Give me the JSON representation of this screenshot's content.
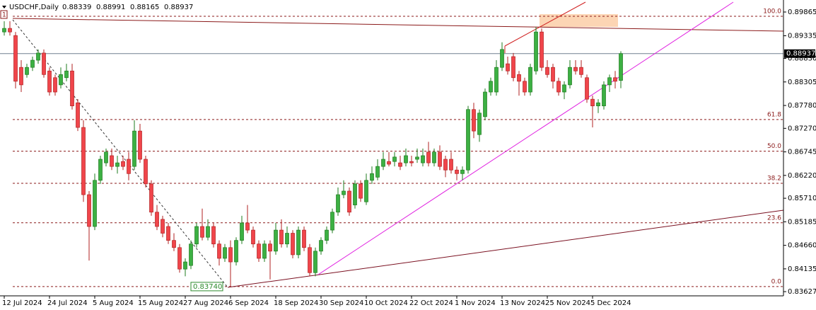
{
  "chart_data": {
    "type": "candlestick",
    "symbol": "USDCHF,Daily",
    "object_label": "1",
    "categories": [
      "12 Jul 2024",
      null,
      null,
      null,
      null,
      null,
      null,
      null,
      "24 Jul 2024",
      null,
      null,
      null,
      null,
      null,
      null,
      null,
      "5 Aug 2024",
      null,
      null,
      null,
      null,
      null,
      null,
      null,
      "15 Aug 2024",
      null,
      null,
      null,
      null,
      null,
      null,
      null,
      "27 Aug 2024",
      null,
      null,
      null,
      null,
      null,
      null,
      null,
      "6 Sep 2024",
      null,
      null,
      null,
      null,
      null,
      null,
      null,
      "18 Sep 2024",
      null,
      null,
      null,
      null,
      null,
      null,
      null,
      "30 Sep 2024",
      null,
      null,
      null,
      null,
      null,
      null,
      null,
      "10 Oct 2024",
      null,
      null,
      null,
      null,
      null,
      null,
      null,
      "22 Oct 2024",
      null,
      null,
      null,
      null,
      null,
      null,
      null,
      "1 Nov 2024",
      null,
      null,
      null,
      null,
      null,
      null,
      null,
      "13 Nov 2024",
      null,
      null,
      null,
      null,
      null,
      null,
      null,
      "25 Nov 2024",
      null,
      null,
      null,
      null,
      null,
      null,
      null,
      "5 Dec 2024",
      null,
      null,
      null,
      null,
      null
    ],
    "open": [
      0.8942,
      0.895,
      0.8934,
      0.8863,
      0.8847,
      0.8863,
      0.8879,
      0.8895,
      0.8855,
      0.884,
      0.8824,
      0.884,
      0.8855,
      0.8784,
      0.8729,
      0.8579,
      0.8508,
      0.8611,
      0.865,
      0.8666,
      0.8642,
      0.8653,
      0.8658,
      0.8642,
      0.8721,
      0.8658,
      0.8603,
      0.854,
      0.8524,
      0.8508,
      0.8477,
      0.8461,
      0.8413,
      0.8421,
      0.8469,
      0.8508,
      0.8484,
      0.8508,
      0.8469,
      0.8437,
      0.8461,
      0.8429,
      0.8477,
      0.8516,
      0.85,
      0.8469,
      0.8437,
      0.8469,
      0.8453,
      0.85,
      0.8469,
      0.8493,
      0.8445,
      0.85,
      0.8461,
      0.8405,
      0.8453,
      0.8477,
      0.85,
      0.854,
      0.8579,
      0.8587,
      0.8556,
      0.8603,
      0.8563,
      0.8611,
      0.8618,
      0.8642,
      0.8653,
      0.8653,
      0.865,
      0.865,
      0.8653,
      0.8658,
      0.865,
      0.8674,
      0.865,
      0.8674,
      0.8658,
      0.8658,
      0.8634,
      0.8626,
      0.8634,
      0.8769,
      0.8713,
      0.8753,
      0.8808,
      0.8808,
      0.8863,
      0.8871,
      0.8887,
      0.8847,
      0.8832,
      0.8808,
      0.8855,
      0.8942,
      0.8863,
      0.8863,
      0.8832,
      0.8808,
      0.8824,
      0.8863,
      0.8863,
      0.884,
      0.8792,
      0.8777,
      0.8777,
      0.8824,
      0.884,
      0.88339
    ],
    "high": [
      0.8966,
      0.8966,
      0.8942,
      0.8879,
      0.8871,
      0.8887,
      0.8903,
      0.8903,
      0.8863,
      0.8847,
      0.8863,
      0.8871,
      0.8871,
      0.8792,
      0.8745,
      0.8587,
      0.8626,
      0.8666,
      0.8682,
      0.8682,
      0.8666,
      0.8666,
      0.8674,
      0.8745,
      0.8737,
      0.8666,
      0.8611,
      0.8556,
      0.8532,
      0.8516,
      0.8493,
      0.8469,
      0.8437,
      0.8477,
      0.8516,
      0.8548,
      0.8524,
      0.8516,
      0.8477,
      0.8469,
      0.8477,
      0.8484,
      0.8532,
      0.8556,
      0.8508,
      0.8477,
      0.8477,
      0.8477,
      0.8516,
      0.8524,
      0.8508,
      0.85,
      0.8508,
      0.8508,
      0.8469,
      0.8461,
      0.8484,
      0.8508,
      0.8548,
      0.8595,
      0.8611,
      0.8595,
      0.8611,
      0.8611,
      0.8626,
      0.8642,
      0.8658,
      0.8674,
      0.8674,
      0.8674,
      0.8666,
      0.8682,
      0.8666,
      0.8682,
      0.8682,
      0.8697,
      0.8682,
      0.8689,
      0.8666,
      0.8674,
      0.8642,
      0.8642,
      0.8777,
      0.8784,
      0.8769,
      0.8816,
      0.884,
      0.8879,
      0.8919,
      0.8887,
      0.8895,
      0.8855,
      0.884,
      0.8871,
      0.8953,
      0.895,
      0.8879,
      0.8871,
      0.884,
      0.8832,
      0.8879,
      0.8879,
      0.8879,
      0.8847,
      0.88,
      0.8792,
      0.8832,
      0.8847,
      0.8855,
      0.88991
    ],
    "low": [
      0.8934,
      0.8934,
      0.8816,
      0.8808,
      0.884,
      0.8855,
      0.8871,
      0.884,
      0.88,
      0.88,
      0.8816,
      0.8832,
      0.8769,
      0.8721,
      0.8563,
      0.8432,
      0.85,
      0.8603,
      0.8642,
      0.8634,
      0.8626,
      0.8634,
      0.8611,
      0.8634,
      0.865,
      0.8595,
      0.8532,
      0.85,
      0.8484,
      0.8469,
      0.8453,
      0.8405,
      0.8397,
      0.8413,
      0.8461,
      0.8477,
      0.8477,
      0.8461,
      0.8421,
      0.8429,
      0.8374,
      0.8421,
      0.8469,
      0.8493,
      0.8461,
      0.8429,
      0.8429,
      0.839,
      0.8445,
      0.8461,
      0.8461,
      0.8437,
      0.8437,
      0.8453,
      0.8397,
      0.8397,
      0.8445,
      0.8469,
      0.8493,
      0.8532,
      0.8571,
      0.8532,
      0.8548,
      0.8563,
      0.8556,
      0.8603,
      0.8611,
      0.8634,
      0.8642,
      0.8642,
      0.8634,
      0.8642,
      0.8642,
      0.865,
      0.8642,
      0.8642,
      0.8642,
      0.8634,
      0.8618,
      0.8626,
      0.8611,
      0.8611,
      0.8626,
      0.8705,
      0.8697,
      0.8745,
      0.88,
      0.88,
      0.8855,
      0.8847,
      0.8832,
      0.88,
      0.88,
      0.88,
      0.8847,
      0.8855,
      0.884,
      0.8816,
      0.88,
      0.8792,
      0.8816,
      0.8847,
      0.884,
      0.8784,
      0.8729,
      0.8761,
      0.8769,
      0.8808,
      0.8816,
      0.88165
    ],
    "close": [
      0.895,
      0.8942,
      0.8832,
      0.8824,
      0.8863,
      0.8879,
      0.8895,
      0.8847,
      0.8808,
      0.8808,
      0.8847,
      0.8855,
      0.8777,
      0.8729,
      0.8579,
      0.8508,
      0.8611,
      0.8658,
      0.8674,
      0.8642,
      0.865,
      0.8642,
      0.8626,
      0.8721,
      0.8658,
      0.8603,
      0.854,
      0.8508,
      0.8493,
      0.8477,
      0.8461,
      0.8413,
      0.8429,
      0.8469,
      0.8508,
      0.8484,
      0.8508,
      0.8469,
      0.8437,
      0.8461,
      0.8429,
      0.8477,
      0.8516,
      0.85,
      0.8469,
      0.8437,
      0.8469,
      0.8453,
      0.85,
      0.8469,
      0.8493,
      0.8445,
      0.85,
      0.8461,
      0.8405,
      0.8453,
      0.8477,
      0.85,
      0.854,
      0.8579,
      0.8587,
      0.854,
      0.8603,
      0.8571,
      0.8611,
      0.8626,
      0.8642,
      0.8658,
      0.8647,
      0.8663,
      0.8642,
      0.8666,
      0.865,
      0.8663,
      0.8666,
      0.865,
      0.8674,
      0.8642,
      0.8634,
      0.8634,
      0.8626,
      0.8634,
      0.8769,
      0.8721,
      0.8761,
      0.8808,
      0.8832,
      0.8863,
      0.8903,
      0.8855,
      0.884,
      0.8832,
      0.8808,
      0.8863,
      0.8942,
      0.8863,
      0.8847,
      0.8832,
      0.8808,
      0.8824,
      0.8863,
      0.8855,
      0.8847,
      0.8792,
      0.8777,
      0.8784,
      0.8824,
      0.884,
      0.8832,
      0.88937
    ],
    "up_color": "#3cb043",
    "down_color": "#f0454b",
    "ylim": [
      0.83533,
      0.90133
    ],
    "yticks": [
      0.89865,
      0.89335,
      {
        "value": 0.8883,
        "label": "0.88830"
      },
      0.88305,
      {
        "value": 0.8778,
        "label": "0.87780"
      },
      {
        "value": 0.8727,
        "label": "0.87270"
      },
      0.86745,
      {
        "value": 0.8622,
        "label": "0.86220"
      },
      {
        "value": 0.8571,
        "label": "0.85710"
      },
      0.85185,
      {
        "value": 0.8466,
        "label": "0.84660"
      },
      0.84135,
      0.83627
    ],
    "fib_levels": [
      {
        "level": "100.0",
        "price": 0.8977
      },
      {
        "level": "61.8",
        "price": 0.87467
      },
      {
        "level": "50.0",
        "price": 0.8676
      },
      {
        "level": "38.2",
        "price": 0.86043
      },
      {
        "level": "23.6",
        "price": 0.85163
      },
      {
        "level": "0.0",
        "price": 0.8374
      }
    ],
    "low_label": {
      "value": 0.8374,
      "label": "0.83740"
    }
  }
}
